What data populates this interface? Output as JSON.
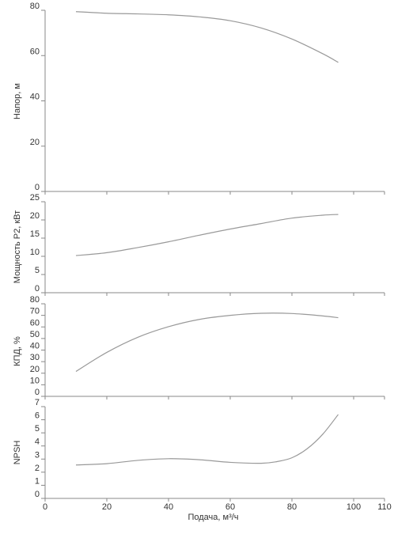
{
  "chart_data": {
    "type": "line",
    "x_axis": {
      "label": "Подача, м³/ч",
      "range": [
        0,
        110
      ],
      "ticks": [
        0,
        20,
        40,
        60,
        80,
        100,
        110
      ]
    },
    "grid": false,
    "line_color": "#999999",
    "axis_color": "#888888",
    "panels": [
      {
        "id": "head",
        "ylabel": "Напор, м",
        "ylim": [
          0,
          80
        ],
        "yticks": [
          0,
          20,
          40,
          60,
          80
        ],
        "series": [
          {
            "x": [
              10,
              20,
              30,
              40,
              50,
              60,
              70,
              80,
              90,
              95
            ],
            "y": [
              79.4,
              78.7,
              78.4,
              78.0,
              77.1,
              75.4,
              72.2,
              67.3,
              60.8,
              57.0
            ]
          }
        ]
      },
      {
        "id": "power",
        "ylabel": "Мощность P2, кВт",
        "ylim": [
          0,
          25
        ],
        "yticks": [
          0,
          5,
          10,
          15,
          20,
          25
        ],
        "series": [
          {
            "x": [
              10,
              20,
              30,
              40,
              50,
              60,
              70,
              80,
              90,
              95
            ],
            "y": [
              10.2,
              11.0,
              12.4,
              14.0,
              15.8,
              17.5,
              19.0,
              20.5,
              21.3,
              21.5
            ]
          }
        ]
      },
      {
        "id": "efficiency",
        "ylabel": "КПД, %",
        "ylim": [
          0,
          80
        ],
        "yticks": [
          0,
          10,
          20,
          30,
          40,
          50,
          60,
          70,
          80
        ],
        "series": [
          {
            "x": [
              10,
              20,
              30,
              40,
              50,
              60,
              70,
              80,
              90,
              95
            ],
            "y": [
              21.5,
              38.0,
              51.0,
              60.2,
              66.5,
              70.0,
              71.8,
              71.6,
              69.5,
              68.0
            ]
          }
        ]
      },
      {
        "id": "npsh",
        "ylabel": "NPSH",
        "ylim": [
          0,
          7
        ],
        "yticks": [
          0,
          1,
          2,
          3,
          4,
          5,
          6,
          7
        ],
        "series": [
          {
            "x": [
              10,
              20,
              30,
              40,
              50,
              60,
              70,
              75,
              80,
              85,
              90,
              95
            ],
            "y": [
              2.55,
              2.65,
              2.9,
              3.03,
              2.95,
              2.75,
              2.68,
              2.8,
              3.1,
              3.8,
              4.9,
              6.4
            ]
          }
        ]
      }
    ]
  }
}
